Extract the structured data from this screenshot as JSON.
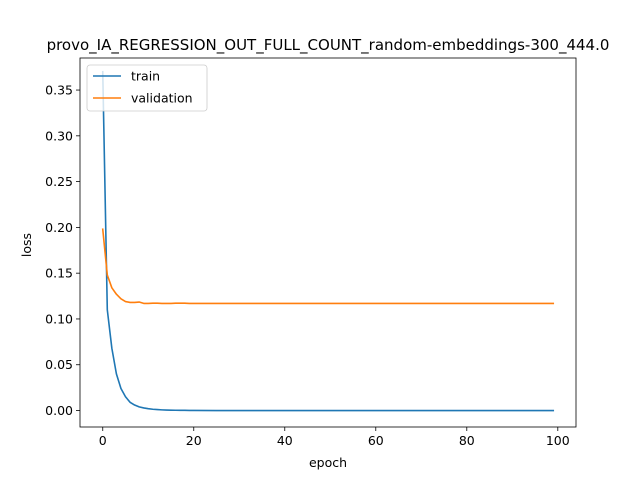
{
  "chart_data": {
    "type": "line",
    "title": "provo_IA_REGRESSION_OUT_FULL_COUNT_random-embeddings-300_444.0",
    "xlabel": "epoch",
    "ylabel": "loss",
    "xlim": [
      -5,
      104
    ],
    "ylim": [
      -0.018,
      0.385
    ],
    "xticks": [
      0,
      20,
      40,
      60,
      80,
      100
    ],
    "xtick_labels": [
      "0",
      "20",
      "40",
      "60",
      "80",
      "100"
    ],
    "yticks": [
      0.0,
      0.05,
      0.1,
      0.15,
      0.2,
      0.25,
      0.3,
      0.35
    ],
    "ytick_labels": [
      "0.00",
      "0.05",
      "0.10",
      "0.15",
      "0.20",
      "0.25",
      "0.30",
      "0.35"
    ],
    "grid": false,
    "legend_position": "upper-left",
    "series": [
      {
        "name": "train",
        "color": "#1f77b4",
        "x": [
          0,
          1,
          2,
          3,
          4,
          5,
          6,
          7,
          8,
          9,
          10,
          11,
          12,
          13,
          14,
          15,
          16,
          17,
          18,
          19,
          20,
          25,
          30,
          40,
          50,
          60,
          70,
          80,
          90,
          99
        ],
        "y": [
          0.37,
          0.11,
          0.068,
          0.04,
          0.024,
          0.015,
          0.009,
          0.006,
          0.004,
          0.0028,
          0.002,
          0.0014,
          0.001,
          0.0007,
          0.0005,
          0.0004,
          0.0003,
          0.0002,
          0.0002,
          0.0001,
          0.0001,
          0.0,
          0.0,
          0.0,
          0.0,
          0.0,
          0.0,
          0.0,
          0.0,
          0.0
        ]
      },
      {
        "name": "validation",
        "color": "#ff7f0e",
        "x": [
          0,
          1,
          2,
          3,
          4,
          5,
          6,
          7,
          8,
          9,
          10,
          11,
          12,
          13,
          14,
          15,
          16,
          17,
          18,
          19,
          20,
          25,
          30,
          40,
          50,
          60,
          70,
          80,
          90,
          99
        ],
        "y": [
          0.198,
          0.148,
          0.134,
          0.127,
          0.122,
          0.119,
          0.118,
          0.118,
          0.1185,
          0.117,
          0.117,
          0.1172,
          0.1172,
          0.117,
          0.117,
          0.117,
          0.1172,
          0.1172,
          0.1172,
          0.117,
          0.117,
          0.117,
          0.117,
          0.117,
          0.117,
          0.117,
          0.117,
          0.117,
          0.117,
          0.117
        ]
      }
    ]
  }
}
